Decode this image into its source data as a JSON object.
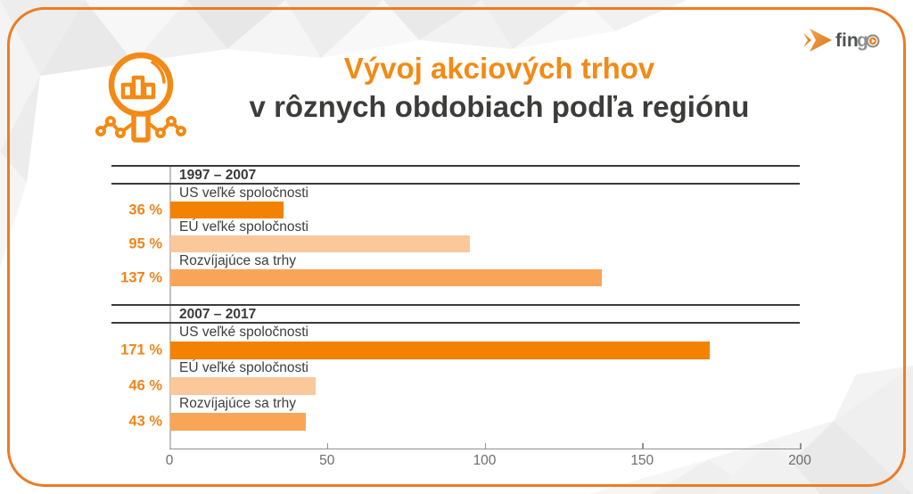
{
  "header": {
    "title_line1": "Vývoj akciových trhov",
    "title_line2": "v rôznych obdobiach podľa regiónu"
  },
  "brand": {
    "name": "fingo",
    "text_fin": "fin",
    "text_g": "g",
    "icon": "fingo-arrow-icon",
    "accent": "#F08519"
  },
  "colors": {
    "frame_border": "#ED7C23",
    "title_orange": "#F28A15",
    "title_dark": "#3C3C3B",
    "value_labels": "#F08519",
    "section_lines": "#3B3B3B"
  },
  "chart_data": {
    "type": "bar",
    "orientation": "horizontal",
    "value_unit": "%",
    "xlim": [
      0,
      200
    ],
    "x_ticks": [
      0,
      50,
      100,
      150,
      200
    ],
    "grid": false,
    "legend": false,
    "bar_colors": [
      "#F28200",
      "#FBC89B",
      "#F9A558"
    ],
    "sections": [
      {
        "period": "1997 – 2007",
        "categories": [
          "US veľké spoločnosti",
          "EÚ veľké spoločnosti",
          "Rozvíjajúce sa trhy"
        ],
        "values": [
          36,
          95,
          137
        ],
        "value_labels": [
          "36 %",
          "95 %",
          "137 %"
        ]
      },
      {
        "period": "2007 – 2017",
        "categories": [
          "US veľké spoločnosti",
          "EÚ veľké spoločnosti",
          "Rozvíjajúce sa trhy"
        ],
        "values": [
          171,
          46,
          43
        ],
        "value_labels": [
          "171 %",
          "46 %",
          "43 %"
        ]
      }
    ]
  }
}
